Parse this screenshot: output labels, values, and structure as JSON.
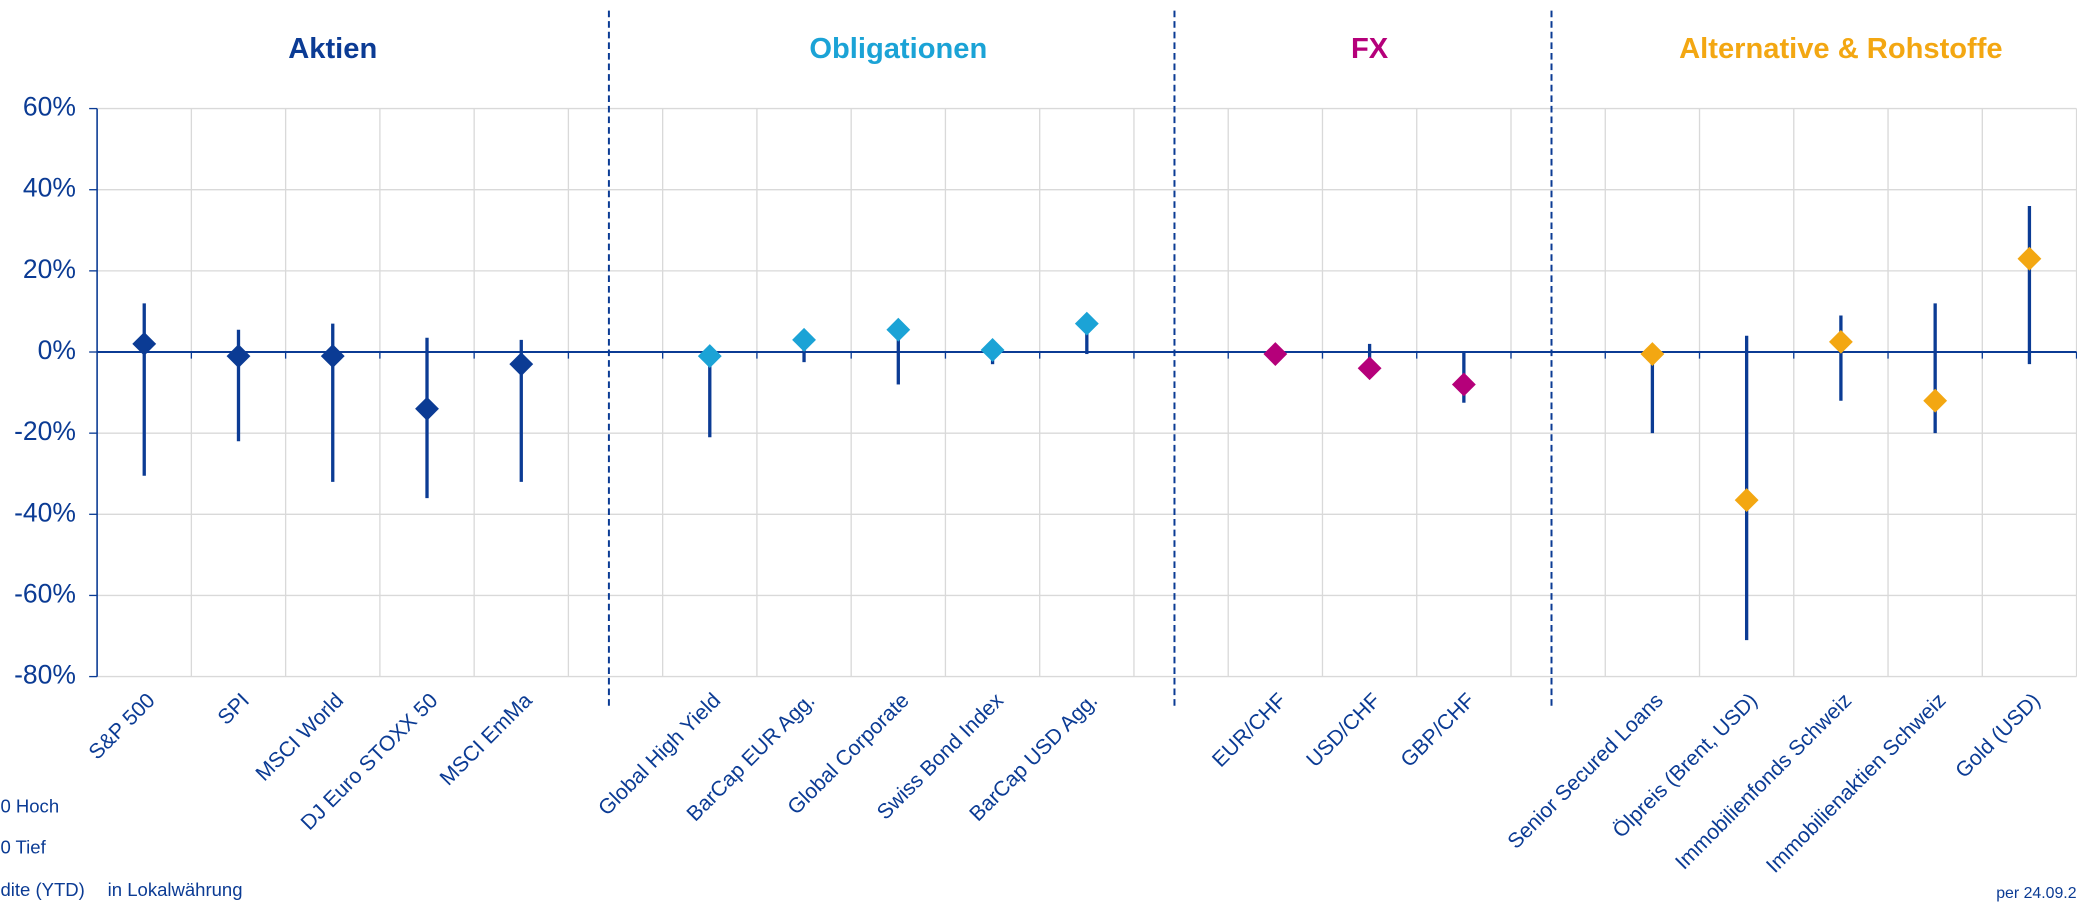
{
  "chart_data": {
    "type": "range_dot",
    "ylim": [
      -80,
      60
    ],
    "yticks": [
      {
        "value": -80,
        "label": "-80%"
      },
      {
        "value": -60,
        "label": "-60%"
      },
      {
        "value": -40,
        "label": "-40%"
      },
      {
        "value": -20,
        "label": "-20%"
      },
      {
        "value": 0,
        "label": "0%"
      },
      {
        "value": 20,
        "label": "20%"
      },
      {
        "value": 40,
        "label": "40%"
      },
      {
        "value": 60,
        "label": "60%"
      }
    ],
    "grid": true,
    "legend": {
      "high": "0 Hoch",
      "low": "0 Tief",
      "ytd": "dite (YTD)"
    },
    "note": "in Lokalwährung",
    "date_note": "per 24.09.2",
    "axis_color": "#0b3b94",
    "groups": [
      {
        "name": "Aktien",
        "color": "#0b3b94",
        "categories": [
          "S&P 500",
          "SPI",
          "MSCI World",
          "DJ Euro STOXX 50",
          "MSCI EmMa"
        ],
        "high": [
          12,
          5.5,
          7,
          3.5,
          3
        ],
        "low": [
          -30.5,
          -22,
          -32,
          -36,
          -32
        ],
        "ytd": [
          2,
          -1,
          -1,
          -14,
          -3
        ]
      },
      {
        "name": "Obligationen",
        "color": "#1ba3d6",
        "categories": [
          "Global High Yield",
          "BarCap EUR Agg.",
          "Global Corporate",
          "Swiss Bond Index",
          "BarCap USD Agg."
        ],
        "high": [
          -1,
          3,
          5.5,
          0.5,
          7
        ],
        "low": [
          -21,
          -2.5,
          -8,
          -3,
          -0.5
        ],
        "ytd": [
          -1,
          3,
          5.5,
          0.5,
          7
        ]
      },
      {
        "name": "FX",
        "color": "#b5007a",
        "categories": [
          "EUR/CHF",
          "USD/CHF",
          "GBP/CHF"
        ],
        "high": [
          -0.5,
          2,
          0
        ],
        "low": [
          -0.5,
          -4,
          -12.5
        ],
        "ytd": [
          -0.5,
          -4,
          -8
        ]
      },
      {
        "name": "Alternative & Rohstoffe",
        "color": "#f3a712",
        "categories": [
          "Senior Secured Loans",
          "Ölpreis (Brent, USD)",
          "Immobilienfonds Schweiz",
          "Immobilienaktien Schweiz",
          "Gold (USD)"
        ],
        "high": [
          -0.5,
          4,
          9,
          12,
          36
        ],
        "low": [
          -20,
          -71,
          -12,
          -20,
          -3
        ],
        "ytd": [
          -0.5,
          -36.5,
          2.5,
          -12,
          23
        ]
      }
    ]
  }
}
